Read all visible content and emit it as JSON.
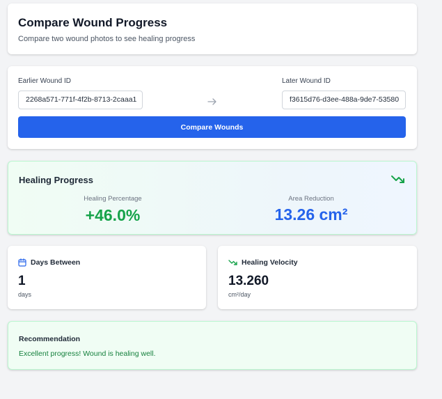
{
  "header": {
    "title": "Compare Wound Progress",
    "subtitle": "Compare two wound photos to see healing progress"
  },
  "form": {
    "earlier_label": "Earlier Wound ID",
    "earlier_value": "2268a571-771f-4f2b-8713-2caaa1",
    "later_label": "Later Wound ID",
    "later_value": "f3615d76-d3ee-488a-9de7-53580",
    "compare_button": "Compare Wounds"
  },
  "progress": {
    "title": "Healing Progress",
    "healing_label": "Healing Percentage",
    "healing_value": "+46.0%",
    "area_label": "Area Reduction",
    "area_value": "13.26 cm²",
    "colors": {
      "positive": "#16a34a",
      "area": "#2563eb"
    }
  },
  "days": {
    "label": "Days Between",
    "value": "1",
    "unit": "days",
    "icon": "calendar-icon"
  },
  "velocity": {
    "label": "Healing Velocity",
    "value": "13.260",
    "unit": "cm²/day",
    "icon": "trending-down-icon"
  },
  "recommendation": {
    "title": "Recommendation",
    "text": "Excellent progress! Wound is healing well."
  },
  "theme": {
    "accent": "#2563eb",
    "success": "#16a34a",
    "background": "#f3f4f6"
  }
}
